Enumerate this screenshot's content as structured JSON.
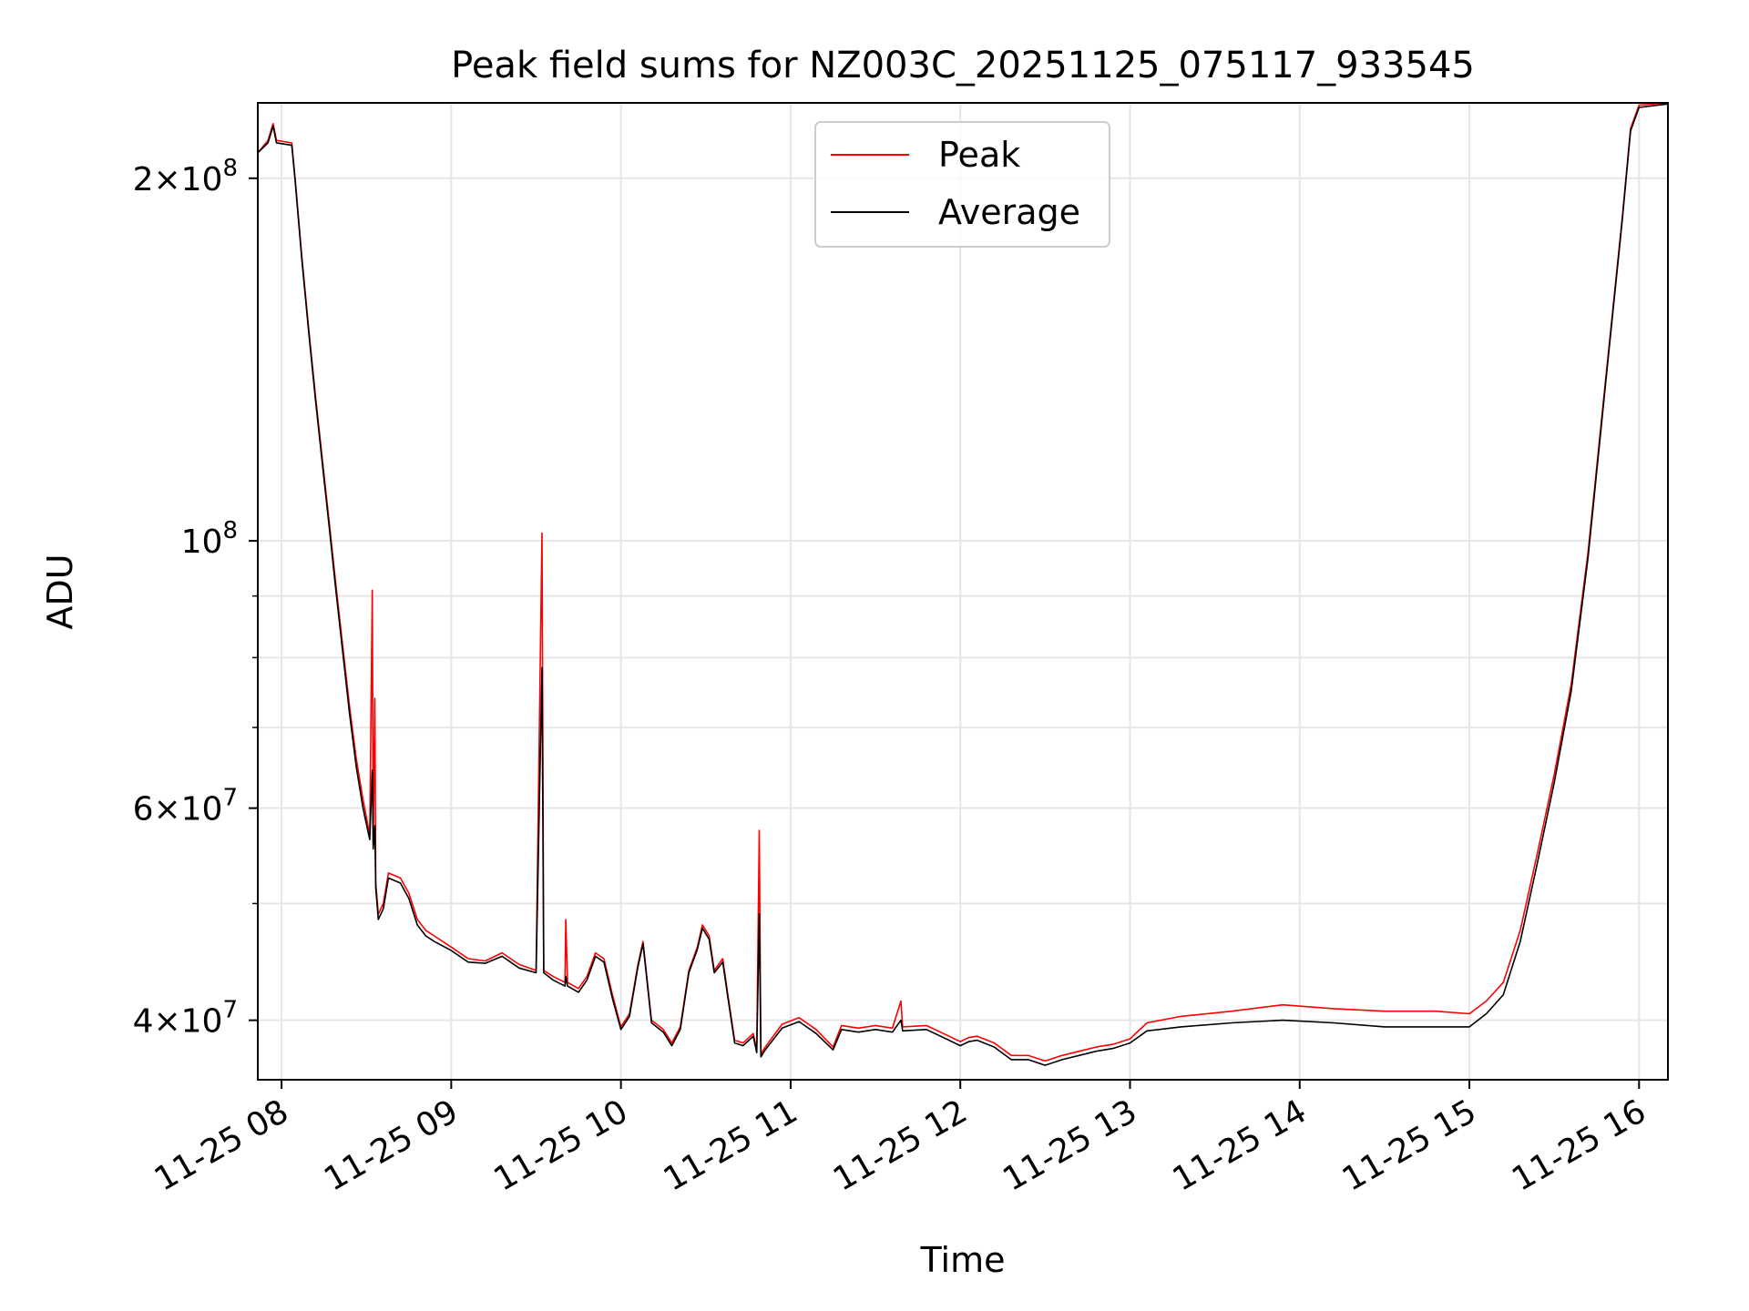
{
  "chart_data": {
    "type": "line",
    "title": "Peak field sums for NZ003C_20251125_075117_933545",
    "xlabel": "Time",
    "ylabel": "ADU",
    "yscale": "log",
    "ylim": [
      35700000,
      231000000
    ],
    "xlim": [
      7.86,
      16.17
    ],
    "grid": true,
    "legend_position": "upper-center",
    "x_ticks": [
      {
        "value": 8,
        "label": "11-25 08"
      },
      {
        "value": 9,
        "label": "11-25 09"
      },
      {
        "value": 10,
        "label": "11-25 10"
      },
      {
        "value": 11,
        "label": "11-25 11"
      },
      {
        "value": 12,
        "label": "11-25 12"
      },
      {
        "value": 13,
        "label": "11-25 13"
      },
      {
        "value": 14,
        "label": "11-25 14"
      },
      {
        "value": 15,
        "label": "11-25 15"
      },
      {
        "value": 16,
        "label": "11-25 16"
      }
    ],
    "y_major_ticks": [
      {
        "value": 40000000,
        "mantissa": "4",
        "exponent": "7"
      },
      {
        "value": 60000000,
        "mantissa": "6",
        "exponent": "7"
      },
      {
        "value": 100000000,
        "mantissa": "",
        "exponent": "8"
      },
      {
        "value": 200000000,
        "mantissa": "2",
        "exponent": "8"
      }
    ],
    "y_minor_ticks": [
      50000000,
      70000000,
      80000000,
      90000000
    ],
    "series": [
      {
        "name": "Peak",
        "color": "#ff0000",
        "points": [
          [
            7.86,
            210000000
          ],
          [
            7.92,
            215000000
          ],
          [
            7.95,
            222000000
          ],
          [
            7.97,
            215000000
          ],
          [
            8.06,
            214000000
          ],
          [
            8.08,
            200000000
          ],
          [
            8.12,
            172000000
          ],
          [
            8.16,
            150000000
          ],
          [
            8.2,
            132000000
          ],
          [
            8.24,
            117000000
          ],
          [
            8.28,
            104000000
          ],
          [
            8.32,
            92000000
          ],
          [
            8.36,
            82000000
          ],
          [
            8.4,
            73000000
          ],
          [
            8.44,
            66000000
          ],
          [
            8.48,
            61000000
          ],
          [
            8.52,
            57000000
          ],
          [
            8.535,
            91000000
          ],
          [
            8.54,
            56000000
          ],
          [
            8.55,
            74000000
          ],
          [
            8.555,
            52000000
          ],
          [
            8.57,
            49000000
          ],
          [
            8.6,
            50000000
          ],
          [
            8.63,
            53000000
          ],
          [
            8.7,
            52500000
          ],
          [
            8.75,
            51000000
          ],
          [
            8.8,
            48500000
          ],
          [
            8.85,
            47500000
          ],
          [
            8.9,
            47000000
          ],
          [
            9.0,
            46000000
          ],
          [
            9.1,
            45000000
          ],
          [
            9.2,
            44800000
          ],
          [
            9.3,
            45500000
          ],
          [
            9.4,
            44500000
          ],
          [
            9.5,
            44000000
          ],
          [
            9.535,
            101500000
          ],
          [
            9.545,
            44000000
          ],
          [
            9.6,
            43500000
          ],
          [
            9.67,
            43000000
          ],
          [
            9.675,
            48500000
          ],
          [
            9.685,
            43000000
          ],
          [
            9.75,
            42500000
          ],
          [
            9.8,
            43500000
          ],
          [
            9.85,
            45500000
          ],
          [
            9.9,
            45000000
          ],
          [
            9.95,
            42000000
          ],
          [
            10.0,
            39500000
          ],
          [
            10.05,
            40500000
          ],
          [
            10.1,
            44500000
          ],
          [
            10.13,
            46500000
          ],
          [
            10.18,
            40000000
          ],
          [
            10.25,
            39300000
          ],
          [
            10.3,
            38300000
          ],
          [
            10.35,
            39500000
          ],
          [
            10.4,
            44000000
          ],
          [
            10.45,
            46000000
          ],
          [
            10.48,
            48000000
          ],
          [
            10.52,
            47000000
          ],
          [
            10.55,
            44000000
          ],
          [
            10.6,
            45000000
          ],
          [
            10.63,
            42000000
          ],
          [
            10.67,
            38500000
          ],
          [
            10.72,
            38300000
          ],
          [
            10.78,
            39000000
          ],
          [
            10.8,
            37800000
          ],
          [
            10.815,
            57500000
          ],
          [
            10.825,
            37500000
          ],
          [
            10.85,
            38000000
          ],
          [
            10.95,
            39700000
          ],
          [
            11.05,
            40200000
          ],
          [
            11.15,
            39300000
          ],
          [
            11.25,
            38000000
          ],
          [
            11.3,
            39600000
          ],
          [
            11.4,
            39400000
          ],
          [
            11.5,
            39600000
          ],
          [
            11.6,
            39400000
          ],
          [
            11.65,
            41500000
          ],
          [
            11.66,
            39500000
          ],
          [
            11.8,
            39600000
          ],
          [
            11.9,
            39000000
          ],
          [
            12.0,
            38400000
          ],
          [
            12.05,
            38700000
          ],
          [
            12.1,
            38800000
          ],
          [
            12.2,
            38300000
          ],
          [
            12.3,
            37400000
          ],
          [
            12.4,
            37400000
          ],
          [
            12.5,
            37000000
          ],
          [
            12.6,
            37400000
          ],
          [
            12.7,
            37700000
          ],
          [
            12.8,
            38000000
          ],
          [
            12.9,
            38200000
          ],
          [
            13.0,
            38600000
          ],
          [
            13.1,
            39800000
          ],
          [
            13.3,
            40300000
          ],
          [
            13.6,
            40700000
          ],
          [
            13.9,
            41200000
          ],
          [
            14.2,
            40900000
          ],
          [
            14.5,
            40700000
          ],
          [
            14.8,
            40700000
          ],
          [
            15.0,
            40500000
          ],
          [
            15.1,
            41500000
          ],
          [
            15.2,
            43000000
          ],
          [
            15.3,
            47500000
          ],
          [
            15.4,
            55000000
          ],
          [
            15.5,
            64000000
          ],
          [
            15.6,
            76000000
          ],
          [
            15.7,
            98000000
          ],
          [
            15.8,
            135000000
          ],
          [
            15.9,
            185000000
          ],
          [
            15.95,
            220000000
          ],
          [
            16.0,
            230000000
          ],
          [
            16.17,
            231000000
          ]
        ]
      },
      {
        "name": "Average",
        "color": "#000000",
        "points": [
          [
            7.86,
            210000000
          ],
          [
            7.92,
            214000000
          ],
          [
            7.95,
            221000000
          ],
          [
            7.97,
            214000000
          ],
          [
            8.06,
            213000000
          ],
          [
            8.08,
            199000000
          ],
          [
            8.12,
            171000000
          ],
          [
            8.16,
            149000000
          ],
          [
            8.2,
            131000000
          ],
          [
            8.24,
            116000000
          ],
          [
            8.28,
            103000000
          ],
          [
            8.32,
            91000000
          ],
          [
            8.36,
            81000000
          ],
          [
            8.4,
            72000000
          ],
          [
            8.44,
            65000000
          ],
          [
            8.48,
            60000000
          ],
          [
            8.52,
            56500000
          ],
          [
            8.535,
            64500000
          ],
          [
            8.54,
            55500000
          ],
          [
            8.55,
            58000000
          ],
          [
            8.555,
            51500000
          ],
          [
            8.57,
            48500000
          ],
          [
            8.6,
            49500000
          ],
          [
            8.63,
            52500000
          ],
          [
            8.7,
            52000000
          ],
          [
            8.75,
            50500000
          ],
          [
            8.8,
            48000000
          ],
          [
            8.85,
            47000000
          ],
          [
            8.9,
            46500000
          ],
          [
            9.0,
            45700000
          ],
          [
            9.1,
            44700000
          ],
          [
            9.2,
            44600000
          ],
          [
            9.3,
            45200000
          ],
          [
            9.4,
            44200000
          ],
          [
            9.5,
            43800000
          ],
          [
            9.535,
            78500000
          ],
          [
            9.545,
            43800000
          ],
          [
            9.6,
            43200000
          ],
          [
            9.67,
            42700000
          ],
          [
            9.675,
            43500000
          ],
          [
            9.685,
            42700000
          ],
          [
            9.75,
            42200000
          ],
          [
            9.8,
            43200000
          ],
          [
            9.85,
            45200000
          ],
          [
            9.9,
            44700000
          ],
          [
            9.95,
            41700000
          ],
          [
            10.0,
            39300000
          ],
          [
            10.05,
            40300000
          ],
          [
            10.1,
            44300000
          ],
          [
            10.13,
            46300000
          ],
          [
            10.18,
            39800000
          ],
          [
            10.25,
            39100000
          ],
          [
            10.3,
            38100000
          ],
          [
            10.35,
            39300000
          ],
          [
            10.4,
            43800000
          ],
          [
            10.45,
            45800000
          ],
          [
            10.48,
            47700000
          ],
          [
            10.52,
            46700000
          ],
          [
            10.55,
            43800000
          ],
          [
            10.6,
            44700000
          ],
          [
            10.63,
            41800000
          ],
          [
            10.67,
            38300000
          ],
          [
            10.72,
            38100000
          ],
          [
            10.78,
            38800000
          ],
          [
            10.8,
            37600000
          ],
          [
            10.815,
            49000000
          ],
          [
            10.825,
            37300000
          ],
          [
            10.85,
            37800000
          ],
          [
            10.95,
            39400000
          ],
          [
            11.05,
            39900000
          ],
          [
            11.15,
            39000000
          ],
          [
            11.25,
            37800000
          ],
          [
            11.3,
            39300000
          ],
          [
            11.4,
            39100000
          ],
          [
            11.5,
            39300000
          ],
          [
            11.6,
            39100000
          ],
          [
            11.65,
            40000000
          ],
          [
            11.66,
            39200000
          ],
          [
            11.8,
            39300000
          ],
          [
            11.9,
            38700000
          ],
          [
            12.0,
            38100000
          ],
          [
            12.05,
            38400000
          ],
          [
            12.1,
            38500000
          ],
          [
            12.2,
            38000000
          ],
          [
            12.3,
            37100000
          ],
          [
            12.4,
            37100000
          ],
          [
            12.5,
            36700000
          ],
          [
            12.6,
            37100000
          ],
          [
            12.7,
            37400000
          ],
          [
            12.8,
            37700000
          ],
          [
            12.9,
            37900000
          ],
          [
            13.0,
            38300000
          ],
          [
            13.1,
            39200000
          ],
          [
            13.3,
            39500000
          ],
          [
            13.6,
            39800000
          ],
          [
            13.9,
            40000000
          ],
          [
            14.2,
            39800000
          ],
          [
            14.5,
            39500000
          ],
          [
            14.8,
            39500000
          ],
          [
            15.0,
            39500000
          ],
          [
            15.1,
            40500000
          ],
          [
            15.2,
            42000000
          ],
          [
            15.3,
            46500000
          ],
          [
            15.4,
            54000000
          ],
          [
            15.5,
            63000000
          ],
          [
            15.6,
            75000000
          ],
          [
            15.7,
            97000000
          ],
          [
            15.8,
            134000000
          ],
          [
            15.9,
            184000000
          ],
          [
            15.95,
            219000000
          ],
          [
            16.0,
            229000000
          ],
          [
            16.17,
            230500000
          ]
        ]
      }
    ]
  }
}
